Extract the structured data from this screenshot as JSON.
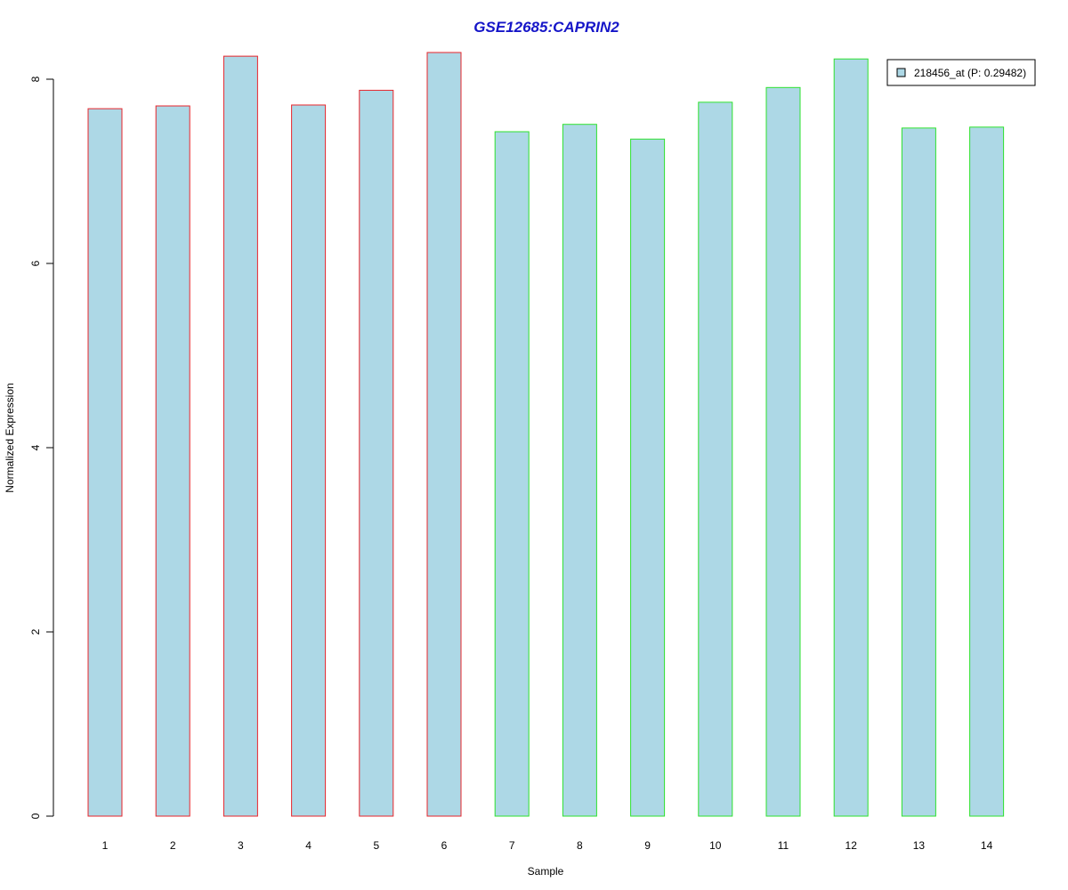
{
  "chart_data": {
    "type": "bar",
    "title": "GSE12685:CAPRIN2",
    "xlabel": "Sample",
    "ylabel": "Normalized Expression",
    "categories": [
      "1",
      "2",
      "3",
      "4",
      "5",
      "6",
      "7",
      "8",
      "9",
      "10",
      "11",
      "12",
      "13",
      "14"
    ],
    "series": [
      {
        "name": "218456_at (P: 0.29482)",
        "values": [
          7.68,
          7.71,
          8.25,
          7.72,
          7.88,
          8.29,
          7.43,
          7.51,
          7.35,
          7.75,
          7.91,
          8.22,
          7.47,
          7.48
        ]
      }
    ],
    "bar_outline_colors": [
      "#e8252b",
      "#e8252b",
      "#e8252b",
      "#e8252b",
      "#e8252b",
      "#e8252b",
      "#2ee22e",
      "#2ee22e",
      "#2ee22e",
      "#2ee22e",
      "#2ee22e",
      "#2ee22e",
      "#2ee22e",
      "#2ee22e"
    ],
    "fill_color": "#add8e6",
    "title_color": "#1515c8",
    "ylim": [
      0,
      8
    ],
    "yticks": [
      0,
      2,
      4,
      6,
      8
    ],
    "grid": false,
    "legend_position": "top-right"
  }
}
